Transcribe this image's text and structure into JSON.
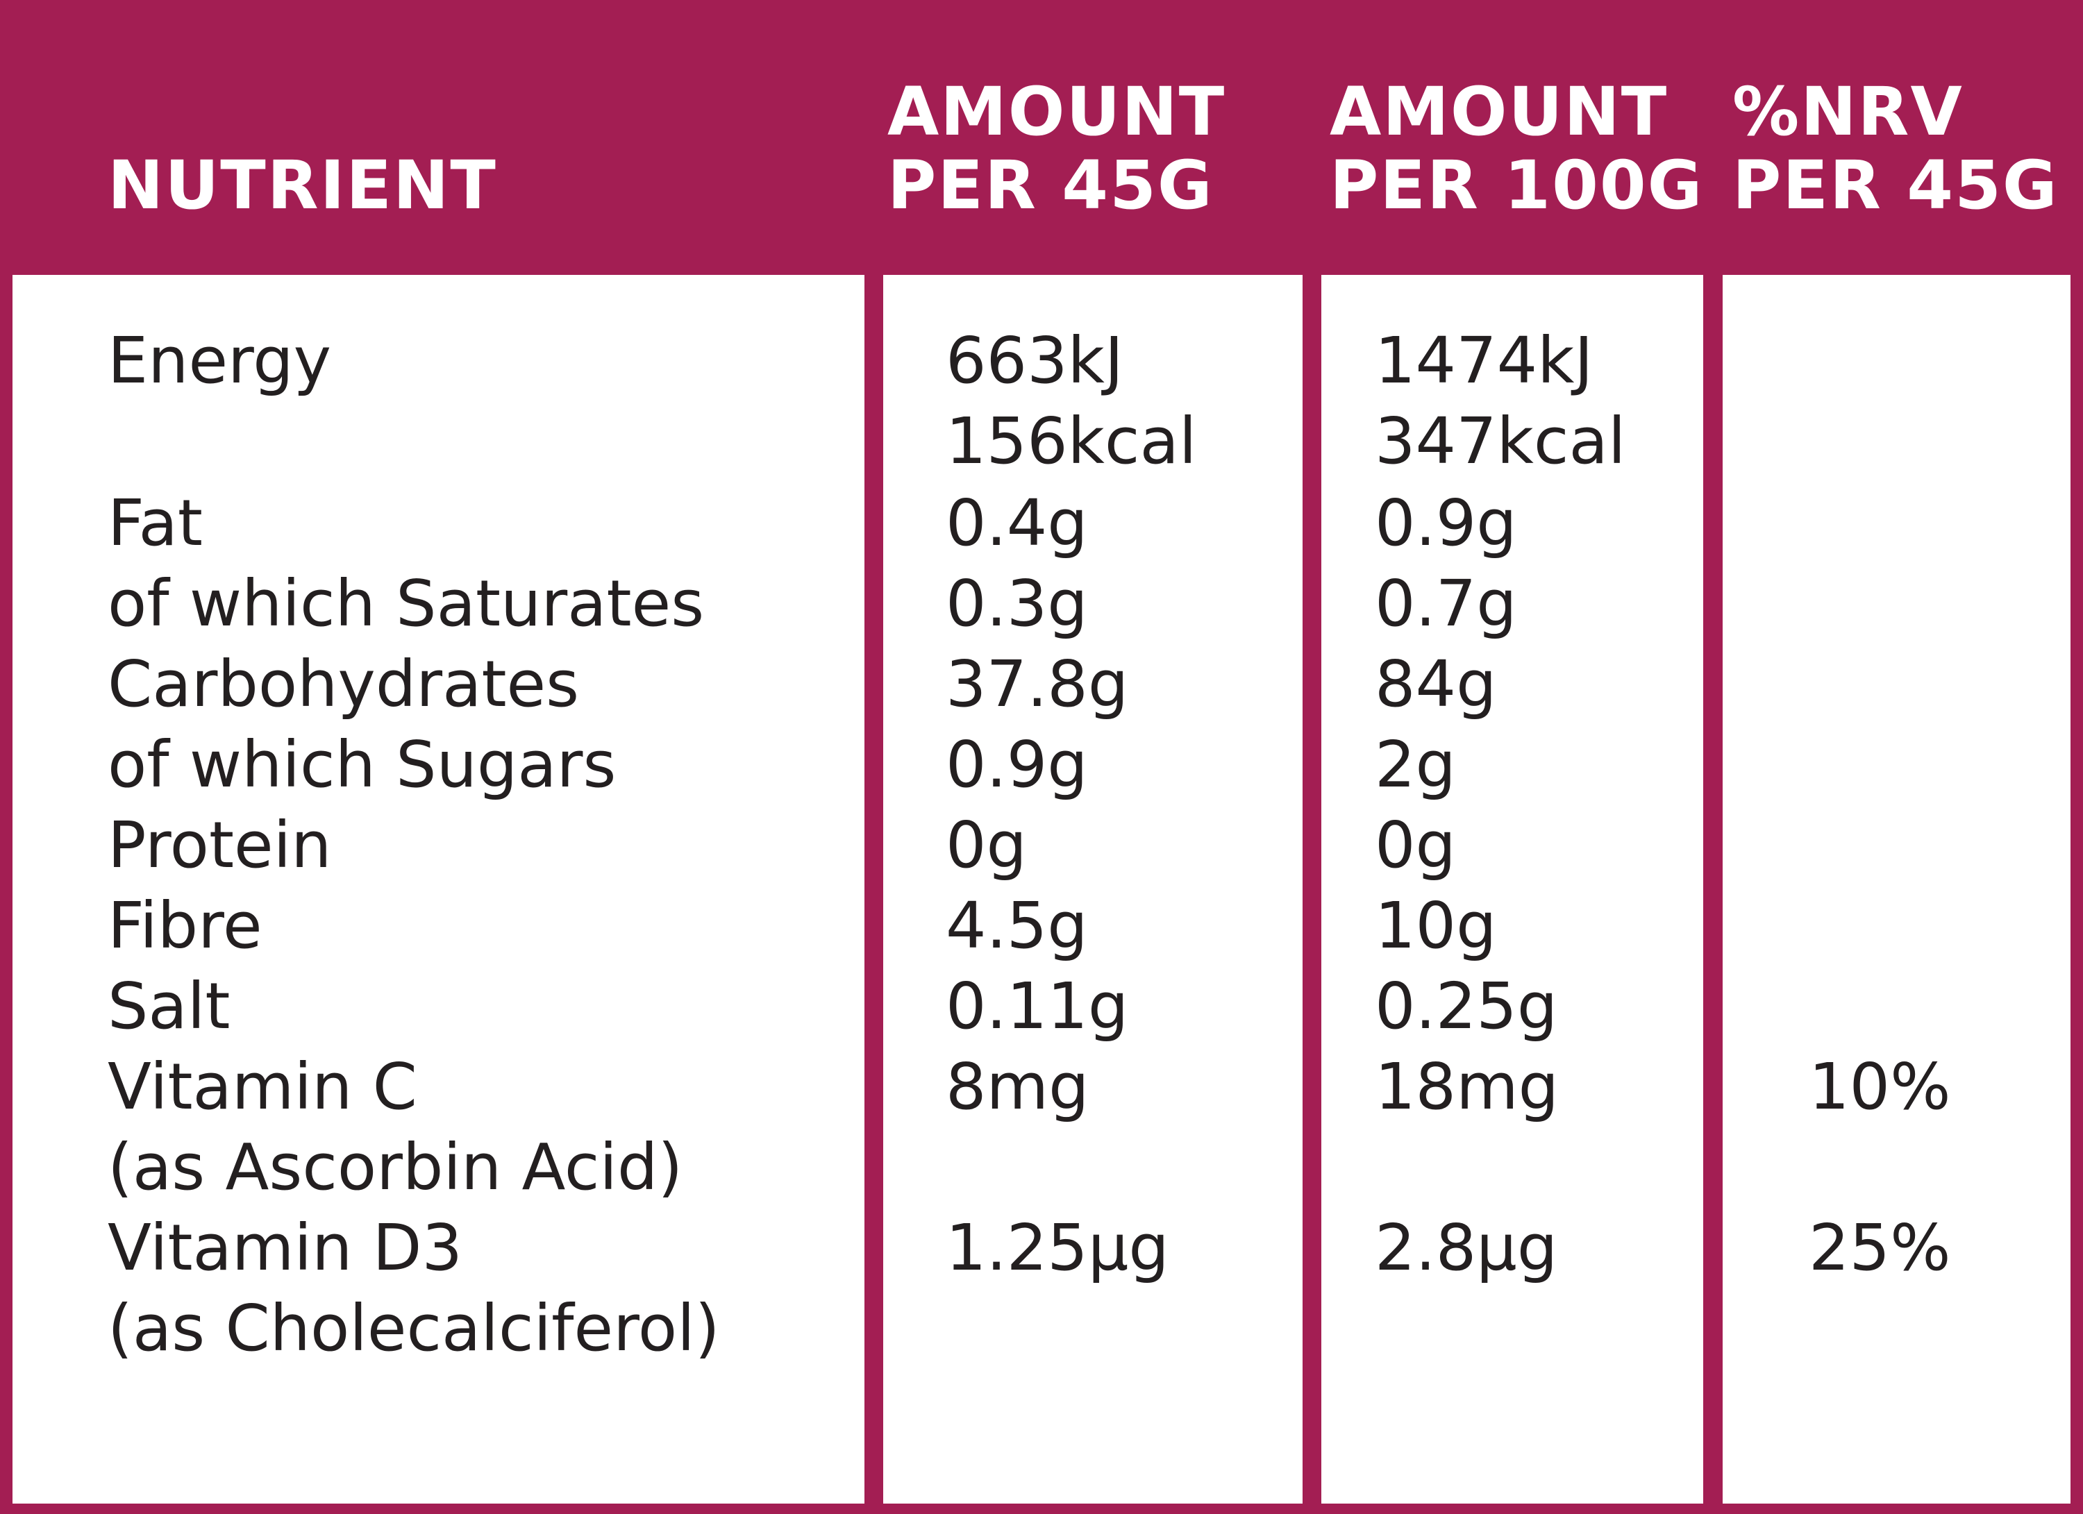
{
  "colors": {
    "frame": "#a31e53",
    "body_bg": "#ffffff",
    "header_text": "#ffffff",
    "body_text": "#231f20"
  },
  "header": {
    "nutrient": "NUTRIENT",
    "per45_line1": "AMOUNT",
    "per45_line2": "PER 45G",
    "per100_line1": "AMOUNT",
    "per100_line2": "PER 100G",
    "nrv_line1": "%NRV",
    "nrv_line2": "PER 45G"
  },
  "rows": [
    {
      "name": "Energy",
      "per45": "663kJ",
      "per100": "1474kJ",
      "nrv": ""
    },
    {
      "name": "",
      "per45": "156kcal",
      "per100": "347kcal",
      "nrv": ""
    },
    {
      "name": "Fat",
      "per45": "0.4g",
      "per100": "0.9g",
      "nrv": ""
    },
    {
      "name": "of which Saturates",
      "per45": "0.3g",
      "per100": "0.7g",
      "nrv": ""
    },
    {
      "name": "Carbohydrates",
      "per45": "37.8g",
      "per100": "84g",
      "nrv": ""
    },
    {
      "name": "of which Sugars",
      "per45": "0.9g",
      "per100": "2g",
      "nrv": ""
    },
    {
      "name": "Protein",
      "per45": "0g",
      "per100": "0g",
      "nrv": ""
    },
    {
      "name": "Fibre",
      "per45": "4.5g",
      "per100": "10g",
      "nrv": ""
    },
    {
      "name": "Salt",
      "per45": "0.11g",
      "per100": "0.25g",
      "nrv": ""
    },
    {
      "name": "Vitamin C",
      "per45": "8mg",
      "per100": "18mg",
      "nrv": "10%"
    },
    {
      "name": "(as Ascorbin Acid)",
      "per45": "",
      "per100": "",
      "nrv": ""
    },
    {
      "name": "Vitamin D3",
      "per45": "1.25µg",
      "per100": "2.8µg",
      "nrv": "25%"
    },
    {
      "name": "(as Cholecalciferol)",
      "per45": "",
      "per100": "",
      "nrv": ""
    }
  ]
}
